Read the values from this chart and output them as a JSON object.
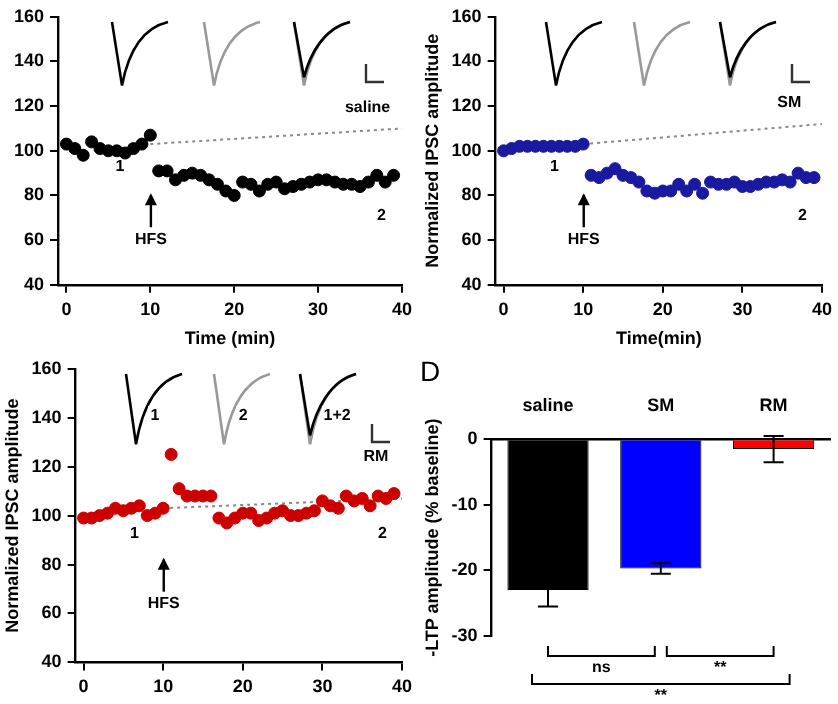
{
  "chart_data": [
    {
      "type": "scatter",
      "xlabel": "Time (min)",
      "xlim": [
        -1,
        40
      ],
      "xticks": [
        0,
        10,
        20,
        30,
        40
      ],
      "ylim": [
        40,
        160
      ],
      "yticks": [
        40,
        60,
        80,
        100,
        120,
        140,
        160
      ],
      "grid": false,
      "legend": false,
      "series": [
        {
          "type": "scatter",
          "marker": "circle",
          "color": "#000000",
          "x": [
            0,
            1,
            2,
            3,
            4,
            5,
            6,
            7,
            8,
            9,
            10,
            11,
            12,
            13,
            14,
            15,
            16,
            17,
            18,
            19,
            20,
            21,
            22,
            23,
            24,
            25,
            26,
            27,
            28,
            29,
            30,
            31,
            32,
            33,
            34,
            35,
            36,
            37,
            38,
            39
          ],
          "values": [
            103,
            101,
            98,
            104,
            101,
            100,
            100,
            99,
            101,
            103,
            107,
            91,
            91,
            87,
            89,
            90,
            89,
            87,
            85,
            82,
            80,
            86,
            85,
            82,
            85,
            86,
            83,
            84,
            85,
            86,
            87,
            87,
            86,
            85,
            85,
            84,
            86,
            89,
            86,
            89
          ]
        },
        {
          "type": "line",
          "color": "#888888",
          "line_style": "dotted",
          "x": [
            10,
            40
          ],
          "values": [
            103,
            110
          ]
        }
      ],
      "annotations": [
        "1",
        "2",
        "saline",
        "HFS"
      ]
    },
    {
      "type": "scatter",
      "xlabel": "Time(min)",
      "ylabel": "Normalized IPSC amplitude",
      "xlim": [
        -1,
        40
      ],
      "xticks": [
        0,
        10,
        20,
        30,
        40
      ],
      "ylim": [
        40,
        160
      ],
      "yticks": [
        40,
        60,
        80,
        100,
        120,
        140,
        160
      ],
      "grid": false,
      "legend": false,
      "series": [
        {
          "type": "scatter",
          "marker": "circle",
          "color": "#1a1aa0",
          "x": [
            0,
            1,
            2,
            3,
            4,
            5,
            6,
            7,
            8,
            9,
            10,
            11,
            12,
            13,
            14,
            15,
            16,
            17,
            18,
            19,
            20,
            21,
            22,
            23,
            24,
            25,
            26,
            27,
            28,
            29,
            30,
            31,
            32,
            33,
            34,
            35,
            36,
            37,
            38,
            39
          ],
          "values": [
            100,
            101,
            102,
            102,
            102,
            102,
            102,
            102,
            102,
            102,
            103,
            89,
            88,
            90,
            92,
            89,
            88,
            86,
            82,
            81,
            82,
            82,
            85,
            82,
            85,
            81,
            86,
            85,
            85,
            86,
            84,
            84,
            85,
            86,
            86,
            87,
            86,
            90,
            88,
            88
          ]
        },
        {
          "type": "line",
          "color": "#888888",
          "line_style": "dotted",
          "x": [
            10,
            40
          ],
          "values": [
            103,
            112
          ]
        }
      ],
      "annotations": [
        "1",
        "2",
        "SM",
        "HFS"
      ]
    },
    {
      "type": "scatter",
      "ylabel": "Normalized IPSC amplitude",
      "xlim": [
        -1,
        40
      ],
      "xticks": [
        0,
        10,
        20,
        30,
        40
      ],
      "ylim": [
        40,
        160
      ],
      "yticks": [
        40,
        60,
        80,
        100,
        120,
        140,
        160
      ],
      "grid": false,
      "legend": false,
      "series": [
        {
          "type": "scatter",
          "marker": "circle",
          "color": "#cc0000",
          "x": [
            0,
            1,
            2,
            3,
            4,
            5,
            6,
            7,
            8,
            9,
            10,
            11,
            12,
            13,
            14,
            15,
            16,
            17,
            18,
            19,
            20,
            21,
            22,
            23,
            24,
            25,
            26,
            27,
            28,
            29,
            30,
            31,
            32,
            33,
            34,
            35,
            36,
            37,
            38,
            39
          ],
          "values": [
            99,
            99,
            100,
            101,
            103,
            102,
            103,
            104,
            100,
            101,
            103,
            125,
            111,
            108,
            108,
            108,
            108,
            99,
            97,
            99,
            101,
            101,
            98,
            99,
            101,
            102,
            100,
            100,
            101,
            102,
            106,
            104,
            103,
            108,
            106,
            107,
            104,
            108,
            107,
            109
          ]
        },
        {
          "type": "line",
          "color": "#888888",
          "line_style": "dotted",
          "x": [
            10,
            40
          ],
          "values": [
            103,
            107
          ]
        }
      ],
      "annotations": [
        "1",
        "2",
        "RM",
        "HFS",
        "1",
        "2",
        "1+2"
      ]
    },
    {
      "type": "bar",
      "title": "D",
      "ylabel": "-LTP amplitude (% baseline)",
      "categories": [
        "saline",
        "SM",
        "RM"
      ],
      "values": [
        -23,
        -19.7,
        -1.5
      ],
      "colors": [
        "#000000",
        "#0000ff",
        "#ff0000"
      ],
      "errors": [
        2.5,
        0.8,
        2
      ],
      "ylim": [
        -30,
        0
      ],
      "yticks": [
        0,
        -10,
        -20,
        -30
      ],
      "grid": false,
      "legend": false,
      "annotations": [
        "ns",
        "**",
        "**"
      ]
    }
  ]
}
